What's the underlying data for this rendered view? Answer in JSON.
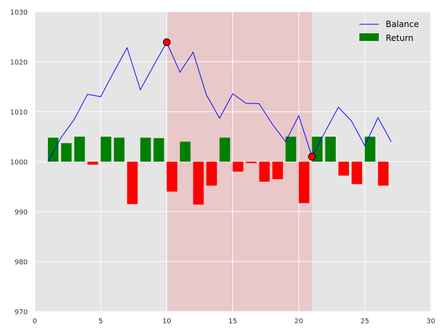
{
  "chart_data": {
    "type": "bar",
    "title": "",
    "xlabel": "",
    "ylabel": "",
    "xlim": [
      0,
      30
    ],
    "ylim": [
      970,
      1030
    ],
    "xticks": [
      "0",
      "5",
      "10",
      "15",
      "20",
      "25",
      "30"
    ],
    "yticks": [
      "970",
      "980",
      "990",
      "1000",
      "1010",
      "1020",
      "1030"
    ],
    "baseline": 1000,
    "grid": true,
    "legend_position": "top-right",
    "shaded_region": {
      "x_start": 10,
      "x_end": 21,
      "color": "#e8c8c8"
    },
    "series": [
      {
        "name": "Balance",
        "type": "line",
        "color": "#0000ff",
        "x": [
          1,
          2,
          3,
          4,
          5,
          6,
          7,
          8,
          9,
          10,
          11,
          12,
          13,
          14,
          15,
          16,
          17,
          18,
          19,
          20,
          21,
          22,
          23,
          24,
          25,
          26,
          27
        ],
        "values": [
          1000.0,
          1004.8,
          1008.5,
          1013.5,
          1013.0,
          1018.0,
          1022.8,
          1014.4,
          1019.2,
          1023.9,
          1017.9,
          1021.9,
          1013.4,
          1008.7,
          1013.6,
          1011.7,
          1011.6,
          1007.5,
          1004.0,
          1009.2,
          1001.0,
          1006.0,
          1010.9,
          1008.1,
          1003.2,
          1008.8,
          1004.0
        ]
      },
      {
        "name": "Return",
        "type": "bar",
        "color": "#008000",
        "negative_color": "#ff0000",
        "x": [
          1,
          2,
          3,
          4,
          5,
          6,
          7,
          8,
          9,
          10,
          11,
          12,
          13,
          14,
          15,
          16,
          17,
          18,
          19,
          20,
          21,
          22,
          23,
          24,
          25,
          26
        ],
        "values": [
          4.8,
          3.7,
          5.0,
          -0.6,
          5.0,
          4.8,
          -8.5,
          4.8,
          4.7,
          -6.0,
          4.0,
          -8.6,
          -4.8,
          4.8,
          -2.0,
          -0.3,
          -4.0,
          -3.5,
          5.0,
          -8.3,
          5.0,
          5.0,
          -2.8,
          -4.5,
          5.0,
          -4.8
        ]
      }
    ],
    "markers": [
      {
        "x": 10,
        "y": 1023.9,
        "color": "#ff0000"
      },
      {
        "x": 21,
        "y": 1001.0,
        "color": "#ff0000"
      }
    ],
    "colors": {
      "background": "#e5e5e5",
      "grid": "#ffffff",
      "frame": "#ffffff"
    }
  }
}
